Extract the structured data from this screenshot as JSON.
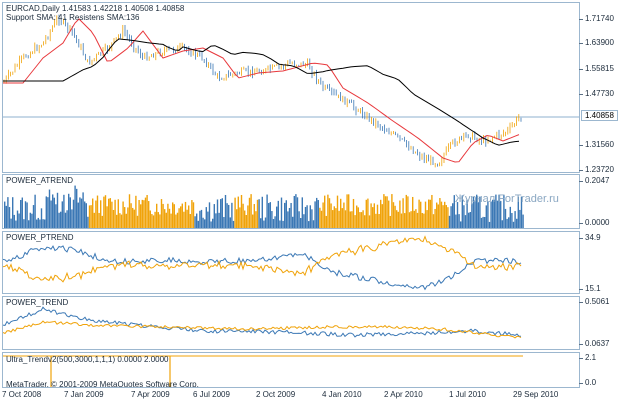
{
  "main": {
    "header": "EURCAD,Daily  1.41583 1.42218 1.40508 1.40858",
    "subheader": "Support SMA: 41 Resistens SMA:136",
    "current_price": "1.40858",
    "ticks": [
      "1.71740",
      "1.63900",
      "1.55815",
      "1.47730",
      "1.31560",
      "1.23720"
    ]
  },
  "atrend": {
    "label": "POWER_ATREND",
    "ticks": [
      "0.2047",
      "0.0000"
    ]
  },
  "ptrend": {
    "label": "POWER_PTREND",
    "ticks": [
      "34.9",
      "15.1"
    ]
  },
  "trend": {
    "label": "POWER_TREND",
    "ticks": [
      "0.5061",
      "0.0637"
    ]
  },
  "ultra": {
    "label": "Ultra_Trendv2(500,3000,1,1,1) 0.0000 2.0000",
    "ticks": [
      "2.1",
      "0.0"
    ]
  },
  "copyright": "MetaTrader, © 2001-2009 MetaQuotes Software Corp.",
  "watermark": "Журнал ForTrader.ru",
  "xaxis": [
    "7 Oct 2008",
    "7 Jan 2009",
    "7 Apr 2009",
    "6 Jul 2009",
    "2 Oct 2009",
    "4 Jan 2010",
    "2 Apr 2010",
    "1 Jul 2010",
    "29 Sep 2010"
  ],
  "colors": {
    "bull": "#f0a30a",
    "bear": "#3b78b5",
    "sma_fast": "#e8383c",
    "sma_slow": "#000000",
    "border": "#9cb7cf"
  }
}
